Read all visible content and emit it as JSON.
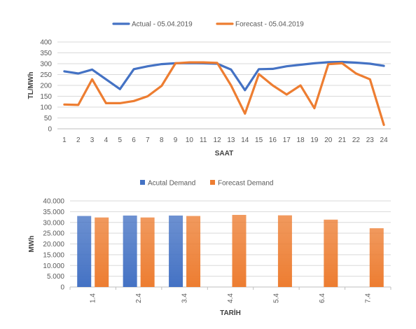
{
  "chart_data": [
    {
      "type": "line",
      "xlabel": "SAAT",
      "ylabel": "TL/MWh",
      "ylim": [
        0,
        400
      ],
      "yticks": [
        "0",
        "50",
        "100",
        "150",
        "200",
        "250",
        "300",
        "350",
        "400"
      ],
      "categories": [
        "1",
        "2",
        "3",
        "4",
        "5",
        "6",
        "7",
        "8",
        "9",
        "10",
        "11",
        "12",
        "13",
        "14",
        "15",
        "16",
        "17",
        "18",
        "19",
        "20",
        "21",
        "22",
        "23",
        "24"
      ],
      "legend": "top",
      "grid": true,
      "series": [
        {
          "name": "Actual - 05.04.2019",
          "color": "#4472c4",
          "values": [
            265,
            255,
            273,
            228,
            183,
            275,
            288,
            298,
            302,
            303,
            302,
            300,
            273,
            178,
            275,
            276,
            288,
            295,
            302,
            307,
            308,
            305,
            300,
            290
          ]
        },
        {
          "name": "Forecast - 05.04.2019",
          "color": "#ed7d31",
          "values": [
            112,
            110,
            228,
            118,
            118,
            128,
            150,
            198,
            302,
            306,
            306,
            304,
            200,
            70,
            252,
            200,
            158,
            200,
            95,
            298,
            302,
            255,
            228,
            18
          ]
        }
      ]
    },
    {
      "type": "bar",
      "xlabel": "TARİH",
      "ylabel": "MWh",
      "ylim": [
        0,
        40000
      ],
      "yticks": [
        "0",
        "5.000",
        "10.000",
        "15.000",
        "20.000",
        "25.000",
        "30.000",
        "35.000",
        "40.000"
      ],
      "categories": [
        "1.4",
        "2.4",
        "3.4",
        "4.4",
        "5.4",
        "6.4",
        "7.4"
      ],
      "legend": "top",
      "grid": true,
      "series": [
        {
          "name": "Acutal Demand",
          "color": "#4472c4",
          "values": [
            33000,
            33200,
            33200,
            null,
            null,
            null,
            null
          ]
        },
        {
          "name": "Forecast Demand",
          "color": "#ed7d31",
          "values": [
            32300,
            32300,
            33000,
            33500,
            33300,
            31300,
            27300
          ]
        }
      ]
    }
  ]
}
